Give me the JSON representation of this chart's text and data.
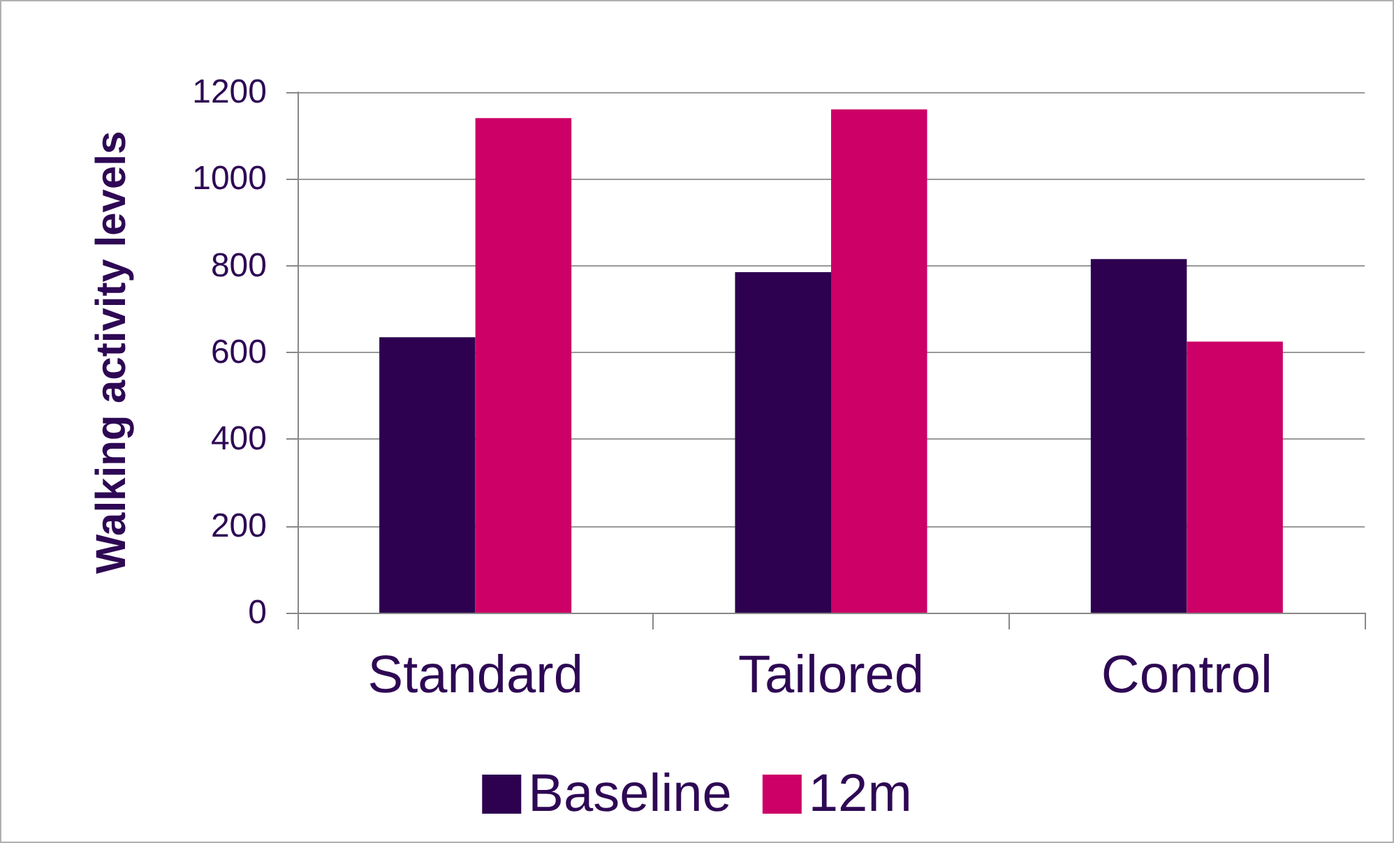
{
  "chart_data": {
    "type": "bar",
    "ylabel": "Walking activity levels",
    "categories": [
      "Standard",
      "Tailored",
      "Control"
    ],
    "series": [
      {
        "name": "Baseline",
        "color": "#2d0050",
        "values": [
          635,
          785,
          815
        ]
      },
      {
        "name": "12m",
        "color": "#cc0066",
        "values": [
          1140,
          1160,
          625
        ]
      }
    ],
    "ylim": [
      0,
      1200
    ],
    "yticks": [
      0,
      200,
      400,
      600,
      800,
      1000,
      1200
    ],
    "grid": "y",
    "legend": "bottom"
  }
}
